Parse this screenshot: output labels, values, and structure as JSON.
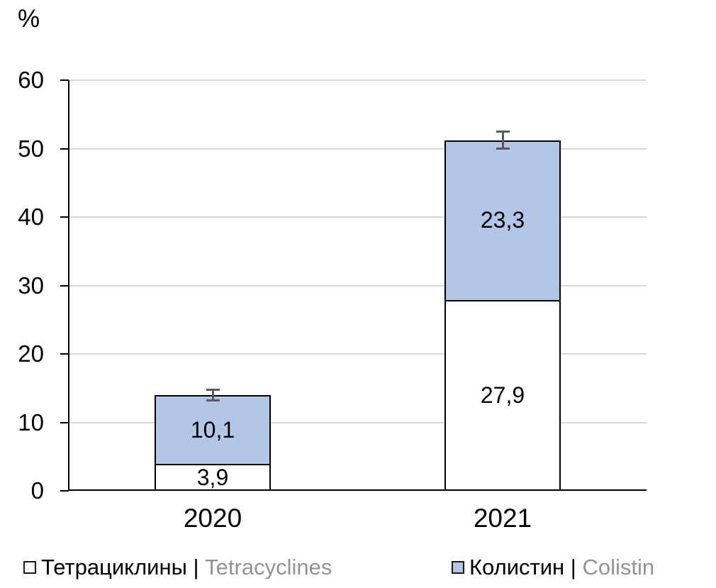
{
  "chart_data": {
    "type": "bar",
    "stacked": true,
    "orientation": "vertical",
    "ylabel": "%",
    "categories": [
      "2020",
      "2021"
    ],
    "series": [
      {
        "name_ru": "Тетрациклины",
        "name_en": "Tetracyclines",
        "values": [
          3.9,
          27.9
        ],
        "labels": [
          "3,9",
          "27,9"
        ],
        "fill": "#FFFFFF",
        "border": "#000000"
      },
      {
        "name_ru": "Колистин",
        "name_en": "Colistin",
        "values": [
          10.1,
          23.3
        ],
        "labels": [
          "10,1",
          "23,3"
        ],
        "fill": "#B4C6E7",
        "border": "#000000"
      }
    ],
    "totals": [
      14.0,
      51.2
    ],
    "error_bars": [
      0.8,
      1.3
    ],
    "ylim": [
      0,
      60
    ],
    "yticks": [
      0,
      10,
      20,
      30,
      40,
      50,
      60
    ],
    "grid": true,
    "grid_color": "#D9D9D9",
    "error_color": "#595959",
    "legend_position": "bottom",
    "decimal_separator": ","
  },
  "axis": {
    "percent_label": "%"
  },
  "legend": {
    "separator": " | ",
    "items": [
      {
        "label_ru": "Тетрациклины",
        "label_en": "Tetracyclines",
        "swatch": "#FFFFFF"
      },
      {
        "label_ru": "Колистин",
        "label_en": "Colistin",
        "swatch": "#B4C6E7"
      }
    ]
  },
  "colors": {
    "axis": "#000000",
    "grid": "#D9D9D9",
    "error": "#595959",
    "blue_fill": "#B4C6E7",
    "legend_en_text": "#939393"
  }
}
